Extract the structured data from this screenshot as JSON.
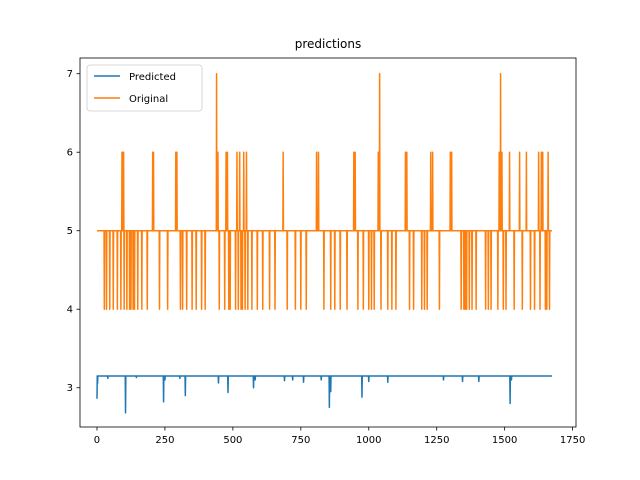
{
  "chart_data": {
    "type": "line",
    "title": "predictions",
    "xlabel": "",
    "ylabel": "",
    "xlim": [
      -62.5,
      1762.5
    ],
    "ylim": [
      2.5,
      7.2
    ],
    "x_ticks": [
      0,
      250,
      500,
      750,
      1000,
      1250,
      1500,
      1750
    ],
    "y_ticks": [
      3,
      4,
      5,
      6,
      7
    ],
    "grid": false,
    "legend_position": "top-left",
    "x_count": 1675,
    "series": [
      {
        "name": "Predicted",
        "color": "#1f77b4",
        "baseline": 3.15,
        "spikes": [
          [
            0,
            2.86
          ],
          [
            2,
            3.05
          ],
          [
            40,
            3.12
          ],
          [
            105,
            2.68
          ],
          [
            145,
            3.13
          ],
          [
            245,
            2.82
          ],
          [
            250,
            3.1
          ],
          [
            305,
            3.12
          ],
          [
            325,
            2.9
          ],
          [
            447,
            3.06
          ],
          [
            482,
            2.94
          ],
          [
            576,
            3.0
          ],
          [
            582,
            3.1
          ],
          [
            690,
            3.09
          ],
          [
            720,
            3.1
          ],
          [
            760,
            3.07
          ],
          [
            825,
            3.1
          ],
          [
            855,
            2.75
          ],
          [
            860,
            2.95
          ],
          [
            975,
            2.88
          ],
          [
            1000,
            3.08
          ],
          [
            1070,
            3.07
          ],
          [
            1275,
            3.1
          ],
          [
            1345,
            3.08
          ],
          [
            1405,
            3.08
          ],
          [
            1520,
            2.8
          ],
          [
            1525,
            3.1
          ]
        ]
      },
      {
        "name": "Original",
        "color": "#ff7f0e",
        "baseline": 5,
        "spikes": [
          [
            27,
            4
          ],
          [
            35,
            4
          ],
          [
            47,
            4
          ],
          [
            60,
            4
          ],
          [
            75,
            4
          ],
          [
            88,
            4
          ],
          [
            92,
            6
          ],
          [
            95,
            6
          ],
          [
            98,
            6
          ],
          [
            100,
            4
          ],
          [
            110,
            4
          ],
          [
            120,
            4
          ],
          [
            125,
            4
          ],
          [
            133,
            4
          ],
          [
            138,
            4
          ],
          [
            150,
            4
          ],
          [
            165,
            4
          ],
          [
            185,
            4
          ],
          [
            205,
            6
          ],
          [
            208,
            6
          ],
          [
            230,
            4
          ],
          [
            260,
            4
          ],
          [
            290,
            6
          ],
          [
            294,
            6
          ],
          [
            307,
            4
          ],
          [
            315,
            4
          ],
          [
            330,
            4
          ],
          [
            350,
            4
          ],
          [
            365,
            4
          ],
          [
            385,
            4
          ],
          [
            398,
            4
          ],
          [
            440,
            7
          ],
          [
            445,
            6
          ],
          [
            450,
            4
          ],
          [
            470,
            4
          ],
          [
            475,
            6
          ],
          [
            480,
            6
          ],
          [
            485,
            4
          ],
          [
            490,
            4
          ],
          [
            510,
            4
          ],
          [
            515,
            6
          ],
          [
            520,
            4
          ],
          [
            525,
            6
          ],
          [
            530,
            4
          ],
          [
            535,
            4
          ],
          [
            540,
            6
          ],
          [
            545,
            4
          ],
          [
            550,
            6
          ],
          [
            555,
            4
          ],
          [
            570,
            4
          ],
          [
            590,
            4
          ],
          [
            610,
            4
          ],
          [
            635,
            4
          ],
          [
            655,
            4
          ],
          [
            685,
            6
          ],
          [
            700,
            4
          ],
          [
            730,
            4
          ],
          [
            750,
            4
          ],
          [
            770,
            4
          ],
          [
            808,
            6
          ],
          [
            815,
            6
          ],
          [
            835,
            4
          ],
          [
            860,
            4
          ],
          [
            875,
            4
          ],
          [
            895,
            4
          ],
          [
            920,
            4
          ],
          [
            945,
            6
          ],
          [
            950,
            6
          ],
          [
            960,
            4
          ],
          [
            980,
            4
          ],
          [
            1000,
            4
          ],
          [
            1010,
            4
          ],
          [
            1020,
            4
          ],
          [
            1035,
            6
          ],
          [
            1040,
            7
          ],
          [
            1045,
            4
          ],
          [
            1070,
            4
          ],
          [
            1085,
            4
          ],
          [
            1100,
            4
          ],
          [
            1135,
            6
          ],
          [
            1140,
            6
          ],
          [
            1150,
            4
          ],
          [
            1165,
            4
          ],
          [
            1195,
            4
          ],
          [
            1205,
            4
          ],
          [
            1215,
            4
          ],
          [
            1228,
            6
          ],
          [
            1235,
            6
          ],
          [
            1260,
            4
          ],
          [
            1300,
            6
          ],
          [
            1305,
            6
          ],
          [
            1340,
            4
          ],
          [
            1350,
            4
          ],
          [
            1355,
            4
          ],
          [
            1360,
            4
          ],
          [
            1370,
            4
          ],
          [
            1380,
            4
          ],
          [
            1395,
            4
          ],
          [
            1430,
            4
          ],
          [
            1440,
            4
          ],
          [
            1450,
            4
          ],
          [
            1475,
            4
          ],
          [
            1480,
            6
          ],
          [
            1485,
            7
          ],
          [
            1490,
            6
          ],
          [
            1495,
            4
          ],
          [
            1505,
            4
          ],
          [
            1518,
            6
          ],
          [
            1535,
            4
          ],
          [
            1555,
            6
          ],
          [
            1565,
            4
          ],
          [
            1580,
            6
          ],
          [
            1595,
            4
          ],
          [
            1610,
            4
          ],
          [
            1625,
            6
          ],
          [
            1630,
            4
          ],
          [
            1635,
            6
          ],
          [
            1640,
            6
          ],
          [
            1650,
            4
          ],
          [
            1655,
            4
          ],
          [
            1660,
            6
          ],
          [
            1665,
            4
          ]
        ]
      }
    ]
  }
}
